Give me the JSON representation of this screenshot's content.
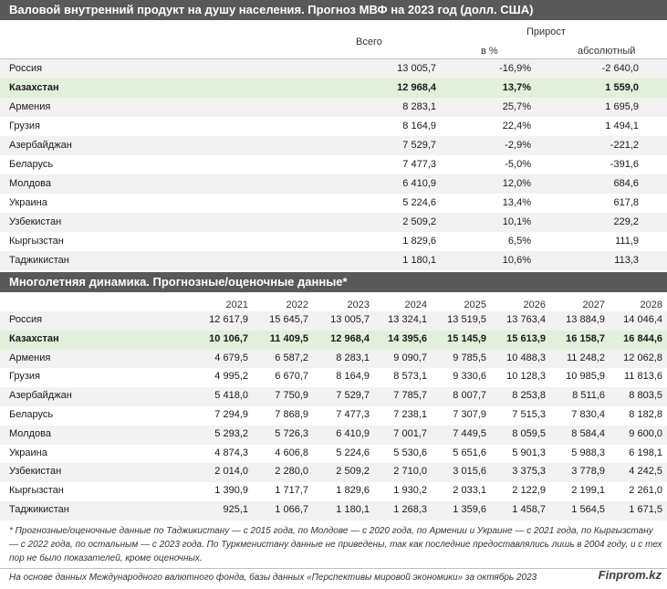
{
  "table1": {
    "title": "Валовой внутренний продукт на душу населения. Прогноз МВФ на 2023 год (долл. США)",
    "col_total": "Всего",
    "col_growth": "Прирост",
    "col_growth_pct": "в %",
    "col_growth_abs": "абсолютный",
    "rows": [
      {
        "country": "Россия",
        "total": "13 005,7",
        "pct": "-16,9%",
        "abs": "-2 640,0"
      },
      {
        "country": "Казахстан",
        "total": "12 968,4",
        "pct": "13,7%",
        "abs": "1 559,0"
      },
      {
        "country": "Армения",
        "total": "8 283,1",
        "pct": "25,7%",
        "abs": "1 695,9"
      },
      {
        "country": "Грузия",
        "total": "8 164,9",
        "pct": "22,4%",
        "abs": "1 494,1"
      },
      {
        "country": "Азербайджан",
        "total": "7 529,7",
        "pct": "-2,9%",
        "abs": "-221,2"
      },
      {
        "country": "Беларусь",
        "total": "7 477,3",
        "pct": "-5,0%",
        "abs": "-391,6"
      },
      {
        "country": "Молдова",
        "total": "6 410,9",
        "pct": "12,0%",
        "abs": "684,6"
      },
      {
        "country": "Украина",
        "total": "5 224,6",
        "pct": "13,4%",
        "abs": "617,8"
      },
      {
        "country": "Узбекистан",
        "total": "2 509,2",
        "pct": "10,1%",
        "abs": "229,2"
      },
      {
        "country": "Кыргызстан",
        "total": "1 829,6",
        "pct": "6,5%",
        "abs": "111,9"
      },
      {
        "country": "Таджикистан",
        "total": "1 180,1",
        "pct": "10,6%",
        "abs": "113,3"
      }
    ]
  },
  "table2": {
    "title": "Многолетняя динамика. Прогнозные/оценочные данные*",
    "years": [
      "2021",
      "2022",
      "2023",
      "2024",
      "2025",
      "2026",
      "2027",
      "2028"
    ],
    "rows": [
      {
        "country": "Россия",
        "values": [
          "12 617,9",
          "15 645,7",
          "13 005,7",
          "13 324,1",
          "13 519,5",
          "13 763,4",
          "13 884,9",
          "14 046,4"
        ]
      },
      {
        "country": "Казахстан",
        "values": [
          "10 106,7",
          "11 409,5",
          "12 968,4",
          "14 395,6",
          "15 145,9",
          "15 613,9",
          "16 158,7",
          "16 844,6"
        ]
      },
      {
        "country": "Армения",
        "values": [
          "4 679,5",
          "6 587,2",
          "8 283,1",
          "9 090,7",
          "9 785,5",
          "10 488,3",
          "11 248,2",
          "12 062,8"
        ]
      },
      {
        "country": "Грузия",
        "values": [
          "4 995,2",
          "6 670,7",
          "8 164,9",
          "8 573,1",
          "9 330,6",
          "10 128,3",
          "10 985,9",
          "11 813,6"
        ]
      },
      {
        "country": "Азербайджан",
        "values": [
          "5 418,0",
          "7 750,9",
          "7 529,7",
          "7 785,7",
          "8 007,7",
          "8 253,8",
          "8 511,6",
          "8 803,5"
        ]
      },
      {
        "country": "Беларусь",
        "values": [
          "7 294,9",
          "7 868,9",
          "7 477,3",
          "7 238,1",
          "7 307,9",
          "7 515,3",
          "7 830,4",
          "8 182,8"
        ]
      },
      {
        "country": "Молдова",
        "values": [
          "5 293,2",
          "5 726,3",
          "6 410,9",
          "7 001,7",
          "7 449,5",
          "8 059,5",
          "8 584,4",
          "9 600,0"
        ]
      },
      {
        "country": "Украина",
        "values": [
          "4 874,3",
          "4 606,8",
          "5 224,6",
          "5 530,6",
          "5 651,6",
          "5 901,3",
          "5 988,3",
          "6 198,1"
        ]
      },
      {
        "country": "Узбекистан",
        "values": [
          "2 014,0",
          "2 280,0",
          "2 509,2",
          "2 710,0",
          "3 015,6",
          "3 375,3",
          "3 778,9",
          "4 242,5"
        ]
      },
      {
        "country": "Кыргызстан",
        "values": [
          "1 390,9",
          "1 717,7",
          "1 829,6",
          "1 930,2",
          "2 033,1",
          "2 122,9",
          "2 199,1",
          "2 261,0"
        ]
      },
      {
        "country": "Таджикистан",
        "values": [
          "925,1",
          "1 066,7",
          "1 180,1",
          "1 268,3",
          "1 359,6",
          "1 458,7",
          "1 564,5",
          "1 671,5"
        ]
      }
    ]
  },
  "footnote": "* Прогнозные/оценочные данные по Таджикистану — с 2015 года, по Молдове — с 2020 года, по Армении и Украине — с 2021 года, по Кыргызстану — с 2022 года, по остальным — с 2023 года. По Туркменистану данные не приведены, так как последние предоставлялись лишь в 2004 году, и с тех пор не было показателей, кроме оценочных.",
  "source": "На основе данных Международного валютного фонда, базы данных «Перспективы мировой экономики» за октябрь 2023",
  "brand": "Finprom.kz",
  "highlight_country": "Казахстан",
  "colors": {
    "header_bg": "#595959",
    "highlight_bg": "#e2efda",
    "alt_row_bg": "#f2f2f2"
  }
}
